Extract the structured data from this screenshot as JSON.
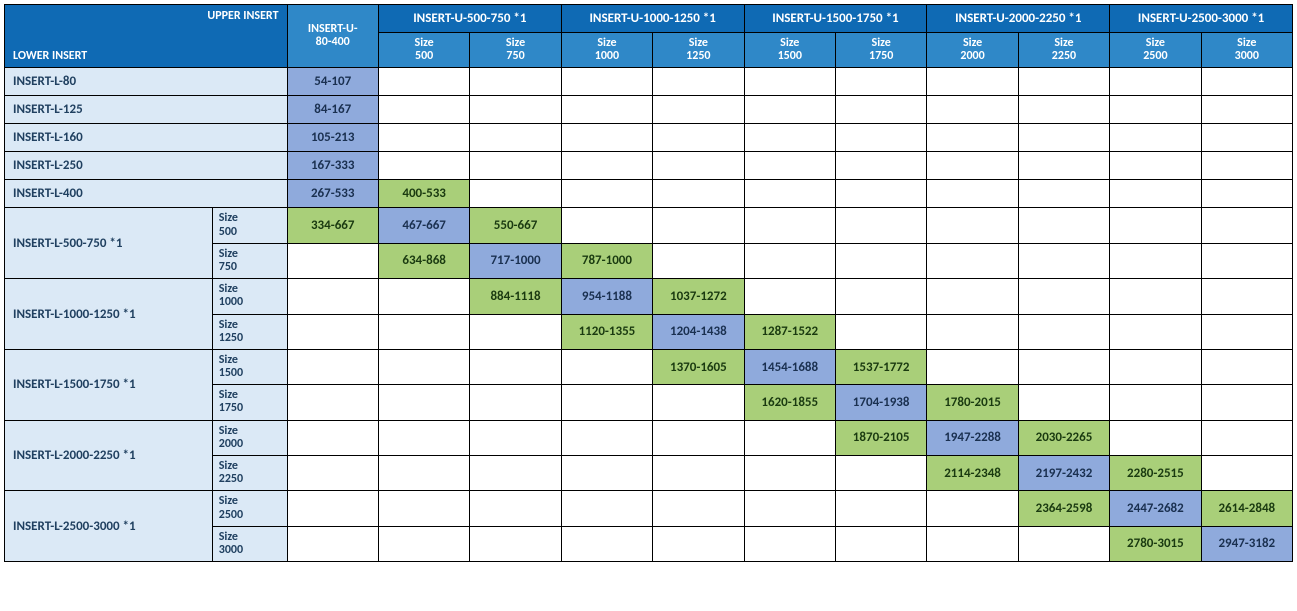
{
  "corner": {
    "upper": "UPPER INSERT",
    "lower": "LOWER INSERT"
  },
  "upper_groups": [
    {
      "label": "INSERT-U-80-400",
      "sizes": []
    },
    {
      "label": "INSERT-U-500-750 *1",
      "sizes": [
        "Size 500",
        "Size 750"
      ]
    },
    {
      "label": "INSERT-U-1000-1250 *1",
      "sizes": [
        "Size 1000",
        "Size 1250"
      ]
    },
    {
      "label": "INSERT-U-1500-1750 *1",
      "sizes": [
        "Size 1500",
        "Size 1750"
      ]
    },
    {
      "label": "INSERT-U-2000-2250 *1",
      "sizes": [
        "Size 2000",
        "Size 2250"
      ]
    },
    {
      "label": "INSERT-U-2500-3000 *1",
      "sizes": [
        "Size 2500",
        "Size 3000"
      ]
    }
  ],
  "rows": [
    {
      "label": "INSERT-L-80",
      "cells": [
        {
          "v": "54-107",
          "c": "blue"
        },
        {},
        {},
        {},
        {},
        {},
        {},
        {},
        {},
        {},
        {}
      ]
    },
    {
      "label": "INSERT-L-125",
      "cells": [
        {
          "v": "84-167",
          "c": "blue"
        },
        {},
        {},
        {},
        {},
        {},
        {},
        {},
        {},
        {},
        {}
      ]
    },
    {
      "label": "INSERT-L-160",
      "cells": [
        {
          "v": "105-213",
          "c": "blue"
        },
        {},
        {},
        {},
        {},
        {},
        {},
        {},
        {},
        {},
        {}
      ]
    },
    {
      "label": "INSERT-L-250",
      "cells": [
        {
          "v": "167-333",
          "c": "blue"
        },
        {},
        {},
        {},
        {},
        {},
        {},
        {},
        {},
        {},
        {}
      ]
    },
    {
      "label": "INSERT-L-400",
      "cells": [
        {
          "v": "267-533",
          "c": "blue"
        },
        {
          "v": "400-533",
          "c": "green"
        },
        {},
        {},
        {},
        {},
        {},
        {},
        {},
        {},
        {}
      ]
    },
    {
      "label": "INSERT-L-500-750 *1",
      "subrows": [
        {
          "sub": "Size 500",
          "cells": [
            {
              "v": "334-667",
              "c": "green"
            },
            {
              "v": "467-667",
              "c": "blue"
            },
            {
              "v": "550-667",
              "c": "green"
            },
            {},
            {},
            {},
            {},
            {},
            {},
            {},
            {}
          ]
        },
        {
          "sub": "Size 750",
          "cells": [
            {},
            {
              "v": "634-868",
              "c": "green"
            },
            {
              "v": "717-1000",
              "c": "blue"
            },
            {
              "v": "787-1000",
              "c": "green"
            },
            {},
            {},
            {},
            {},
            {},
            {},
            {}
          ]
        }
      ]
    },
    {
      "label": "INSERT-L-1000-1250 *1",
      "subrows": [
        {
          "sub": "Size 1000",
          "cells": [
            {},
            {},
            {
              "v": "884-1118",
              "c": "green"
            },
            {
              "v": "954-1188",
              "c": "blue"
            },
            {
              "v": "1037-1272",
              "c": "green"
            },
            {},
            {},
            {},
            {},
            {},
            {}
          ]
        },
        {
          "sub": "Size 1250",
          "cells": [
            {},
            {},
            {},
            {
              "v": "1120-1355",
              "c": "green"
            },
            {
              "v": "1204-1438",
              "c": "blue"
            },
            {
              "v": "1287-1522",
              "c": "green"
            },
            {},
            {},
            {},
            {},
            {}
          ]
        }
      ]
    },
    {
      "label": "INSERT-L-1500-1750 *1",
      "subrows": [
        {
          "sub": "Size 1500",
          "cells": [
            {},
            {},
            {},
            {},
            {
              "v": "1370-1605",
              "c": "green"
            },
            {
              "v": "1454-1688",
              "c": "blue"
            },
            {
              "v": "1537-1772",
              "c": "green"
            },
            {},
            {},
            {},
            {}
          ]
        },
        {
          "sub": "Size 1750",
          "cells": [
            {},
            {},
            {},
            {},
            {},
            {
              "v": "1620-1855",
              "c": "green"
            },
            {
              "v": "1704-1938",
              "c": "blue"
            },
            {
              "v": "1780-2015",
              "c": "green"
            },
            {},
            {},
            {}
          ]
        }
      ]
    },
    {
      "label": "INSERT-L-2000-2250 *1",
      "subrows": [
        {
          "sub": "Size 2000",
          "cells": [
            {},
            {},
            {},
            {},
            {},
            {},
            {
              "v": "1870-2105",
              "c": "green"
            },
            {
              "v": "1947-2288",
              "c": "blue"
            },
            {
              "v": "2030-2265",
              "c": "green"
            },
            {},
            {}
          ]
        },
        {
          "sub": "Size 2250",
          "cells": [
            {},
            {},
            {},
            {},
            {},
            {},
            {},
            {
              "v": "2114-2348",
              "c": "green"
            },
            {
              "v": "2197-2432",
              "c": "blue"
            },
            {
              "v": "2280-2515",
              "c": "green"
            },
            {}
          ]
        }
      ]
    },
    {
      "label": "INSERT-L-2500-3000 *1",
      "subrows": [
        {
          "sub": "Size 2500",
          "cells": [
            {},
            {},
            {},
            {},
            {},
            {},
            {},
            {},
            {
              "v": "2364-2598",
              "c": "green"
            },
            {
              "v": "2447-2682",
              "c": "blue"
            },
            {
              "v": "2614-2848",
              "c": "green"
            }
          ]
        },
        {
          "sub": "Size 3000",
          "cells": [
            {},
            {},
            {},
            {},
            {},
            {},
            {},
            {},
            {},
            {
              "v": "2780-3015",
              "c": "green"
            },
            {
              "v": "2947-3182",
              "c": "blue"
            }
          ]
        }
      ]
    }
  ],
  "colors": {
    "header_dark": "#0f6ab4",
    "header_mid": "#2f88c8",
    "row_label_bg": "#dbe9f6",
    "cell_blue": "#8faadc",
    "cell_green": "#a9cf79",
    "border": "#000000"
  }
}
